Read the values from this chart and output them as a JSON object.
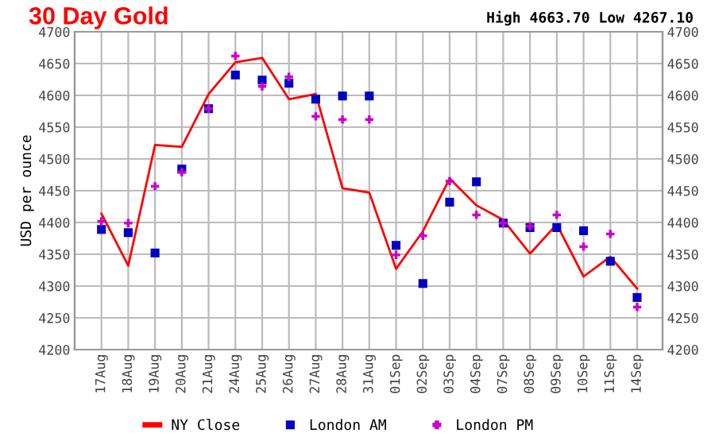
{
  "chart_data": {
    "type": "line",
    "title": "30 Day Gold",
    "ylabel": "USD per ounce",
    "annotations": [
      "High 4663.70 Low 4267.10"
    ],
    "categories": [
      "17Aug",
      "18Aug",
      "19Aug",
      "20Aug",
      "21Aug",
      "24Aug",
      "25Aug",
      "26Aug",
      "27Aug",
      "28Aug",
      "31Aug",
      "01Sep",
      "02Sep",
      "03Sep",
      "04Sep",
      "07Sep",
      "08Sep",
      "09Sep",
      "10Sep",
      "11Sep",
      "14Sep"
    ],
    "series": [
      {
        "name": "NY Close",
        "color": "#ff0000",
        "marker": "none",
        "values": [
          4414,
          4332,
          4522,
          4519,
          4602,
          4652,
          4659,
          4594,
          4602,
          4454,
          4447,
          4327,
          4386,
          4469,
          4427,
          4404,
          4351,
          4397,
          4315,
          4346,
          4296
        ]
      },
      {
        "name": "London AM",
        "type": "scatter",
        "color": "#0000c0",
        "marker": "square",
        "values": [
          4389,
          4384,
          4352,
          4484,
          4579,
          4632,
          4624,
          4619,
          4594,
          4599,
          4599,
          4364,
          4304,
          4432,
          4464,
          4399,
          4392,
          4392,
          4387,
          4339,
          4282
        ]
      },
      {
        "name": "London PM",
        "type": "scatter",
        "color": "#cc00cc",
        "marker": "cross",
        "values": [
          4402,
          4399,
          4457,
          4479,
          4579,
          4662,
          4614,
          4629,
          4567,
          4562,
          4562,
          4349,
          4379,
          4465,
          4412,
          4399,
          4394,
          4412,
          4362,
          4382,
          4267
        ]
      }
    ],
    "ylim": [
      4200,
      4700
    ],
    "yticks": [
      4200,
      4250,
      4300,
      4350,
      4400,
      4450,
      4500,
      4550,
      4600,
      4650,
      4700
    ],
    "y2lim": [
      4200,
      4700
    ],
    "y2ticks": [
      4200,
      4250,
      4300,
      4350,
      4400,
      4450,
      4500,
      4550,
      4600,
      4650,
      4700
    ],
    "grid": true,
    "legend": "bottom"
  }
}
